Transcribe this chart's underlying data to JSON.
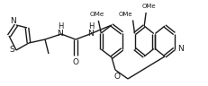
{
  "bg_color": "#ffffff",
  "line_color": "#1a1a1a",
  "line_width": 1.0,
  "figsize": [
    2.32,
    0.96
  ],
  "dpi": 100,
  "xlim": [
    0,
    232
  ],
  "ylim": [
    0,
    96
  ]
}
